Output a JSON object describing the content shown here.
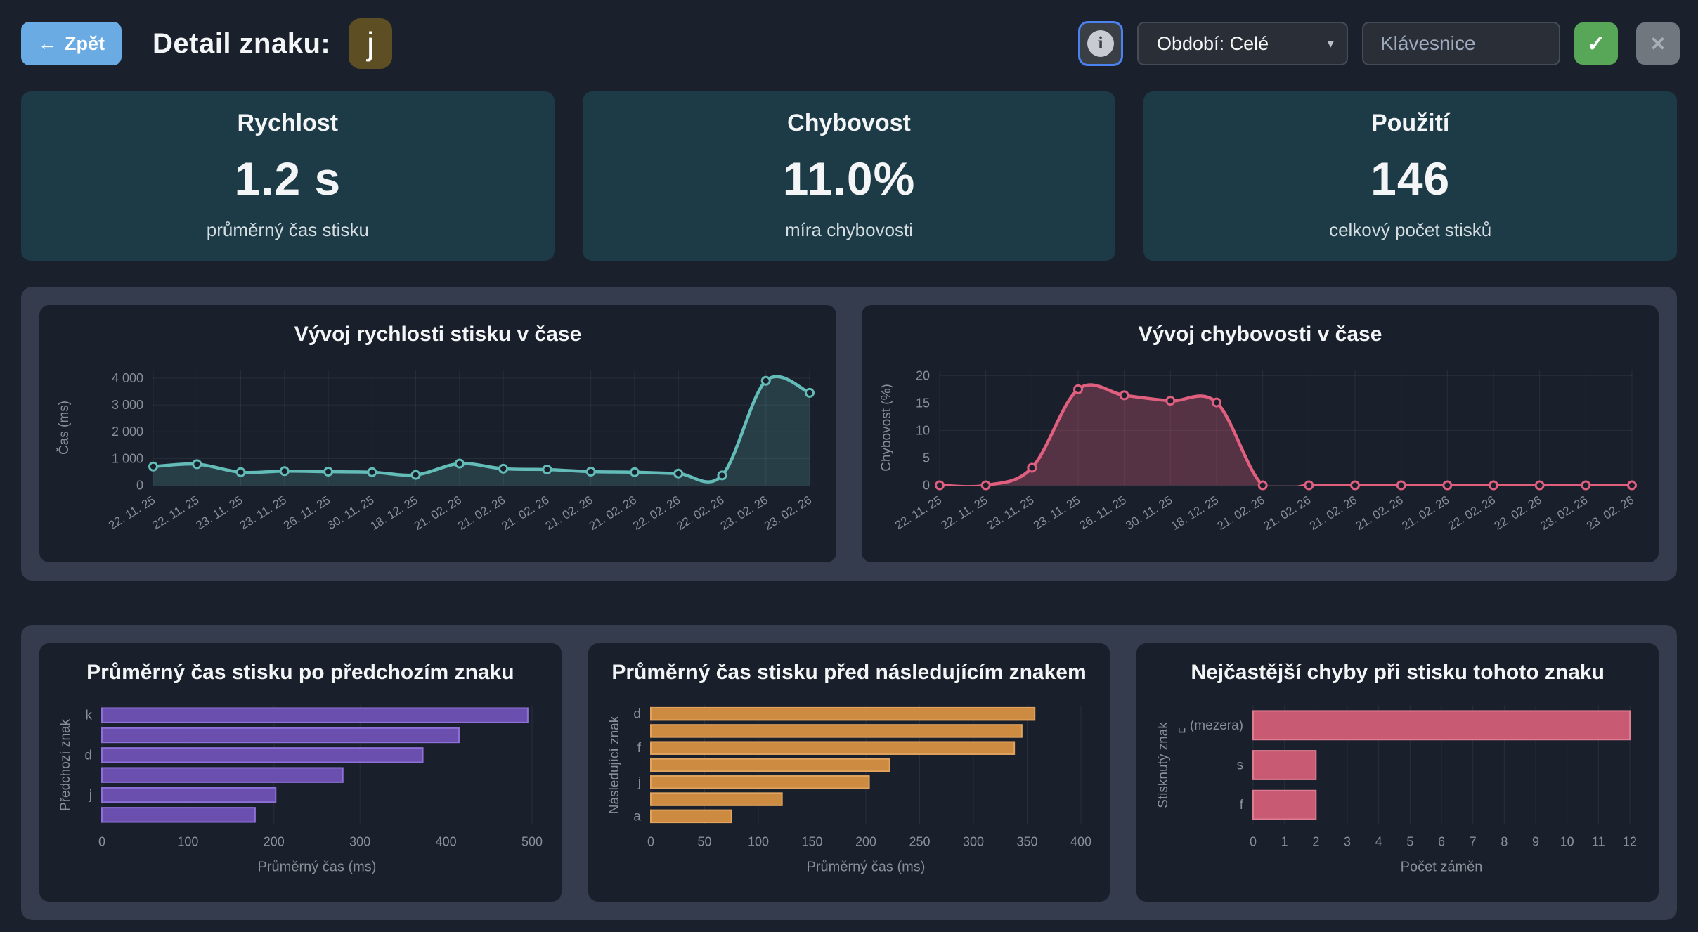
{
  "header": {
    "back": {
      "icon": "←",
      "label": "Zpět"
    },
    "title": "Detail znaku:",
    "char": "j",
    "info": "i",
    "period": {
      "value": "Období: Celé",
      "caret": "▾"
    },
    "keyboard_placeholder": "Klávesnice",
    "confirm": "✓",
    "close": "✕"
  },
  "colors": {
    "accent_blue": "#6aabe4",
    "badge_olive": "#5d4e23",
    "confirm_green": "#58a758",
    "close_gray": "#71777f",
    "info_border_blue": "#4c82f0",
    "stat_card_teal": "#1d3b47",
    "panel_slate": "#343c4e",
    "card_dark": "#191f2b",
    "axis_text": "#8a8f98"
  },
  "stats": [
    {
      "title": "Rychlost",
      "value": "1.2 s",
      "caption": "průměrný čas stisku"
    },
    {
      "title": "Chybovost",
      "value": "11.0%",
      "caption": "míra chybovosti"
    },
    {
      "title": "Použití",
      "value": "146",
      "caption": "celkový počet stisků"
    }
  ],
  "chart_data": [
    {
      "type": "line",
      "title": "Vývoj rychlosti stisku v čase",
      "x": [
        "22. 11. 25",
        "22. 11. 25",
        "23. 11. 25",
        "23. 11. 25",
        "26. 11. 25",
        "30. 11. 25",
        "18. 12. 25",
        "21. 02. 26",
        "21. 02. 26",
        "21. 02. 26",
        "21. 02. 26",
        "21. 02. 26",
        "22. 02. 26",
        "22. 02. 26",
        "23. 02. 26",
        "23. 02. 26"
      ],
      "values": [
        700,
        790,
        490,
        530,
        510,
        490,
        390,
        810,
        620,
        590,
        510,
        490,
        440,
        370,
        3900,
        3450
      ],
      "ylabel": "Čas (ms)",
      "yticks": [
        0,
        1000,
        2000,
        3000,
        4000
      ],
      "ytick_labels": [
        "0",
        "1 000",
        "2 000",
        "3 000",
        "4 000"
      ],
      "ylim": [
        0,
        4300
      ],
      "grid": true,
      "legend": "none",
      "color": "#63bcb8",
      "fill": "rgba(99,188,184,0.20)"
    },
    {
      "type": "line",
      "title": "Vývoj chybovosti v čase",
      "x": [
        "22. 11. 25",
        "22. 11. 25",
        "23. 11. 25",
        "23. 11. 25",
        "26. 11. 25",
        "30. 11. 25",
        "18. 12. 25",
        "21. 02. 26",
        "21. 02. 26",
        "21. 02. 26",
        "21. 02. 26",
        "21. 02. 26",
        "22. 02. 26",
        "22. 02. 26",
        "23. 02. 26",
        "23. 02. 26"
      ],
      "values": [
        0,
        0,
        3.2,
        17.5,
        16.4,
        15.4,
        15.1,
        0,
        0,
        0,
        0,
        0,
        0,
        0,
        0,
        0
      ],
      "ylabel": "Chybovost (%)",
      "yticks": [
        0,
        5,
        10,
        15,
        20
      ],
      "ytick_labels": [
        "0",
        "5",
        "10",
        "15",
        "20"
      ],
      "ylim": [
        0,
        21
      ],
      "grid": true,
      "legend": "none",
      "color": "#e05f7e",
      "fill": "rgba(224,95,126,0.30)"
    },
    {
      "type": "bar",
      "title": "Průměrný čas stisku po předchozím znaku",
      "categories": [
        "k",
        "",
        "d",
        "",
        "j",
        ""
      ],
      "values": [
        495,
        415,
        373,
        280,
        202,
        178
      ],
      "xlabel": "Průměrný čas (ms)",
      "ylabel": "Předchozí znak",
      "xticks": [
        0,
        100,
        200,
        300,
        400,
        500
      ],
      "xlim": [
        0,
        500
      ],
      "grid": true,
      "color": "#6a4fae",
      "border": "#8d71d8"
    },
    {
      "type": "bar",
      "title": "Průměrný čas stisku před následujícím znakem",
      "categories": [
        "d",
        "",
        "f",
        "",
        "j",
        "",
        "a"
      ],
      "values": [
        357,
        345,
        338,
        222,
        203,
        122,
        75
      ],
      "xlabel": "Průměrný čas (ms)",
      "ylabel": "Následující znak",
      "xticks": [
        0,
        50,
        100,
        150,
        200,
        250,
        300,
        350,
        400
      ],
      "xlim": [
        0,
        400
      ],
      "grid": true,
      "color": "#cd8a41",
      "border": "#e0a45f"
    },
    {
      "type": "bar",
      "title": "Nejčastější chyby při stisku tohoto znaku",
      "categories": [
        "␣ (mezera)",
        "s",
        "f"
      ],
      "values": [
        12,
        2,
        2
      ],
      "xlabel": "Počet záměn",
      "ylabel": "Stisknutý znak",
      "xticks": [
        0,
        1,
        2,
        3,
        4,
        5,
        6,
        7,
        8,
        9,
        10,
        11,
        12
      ],
      "xlim": [
        0,
        12
      ],
      "grid": true,
      "color": "#c95a74",
      "border": "#de7d92"
    }
  ]
}
